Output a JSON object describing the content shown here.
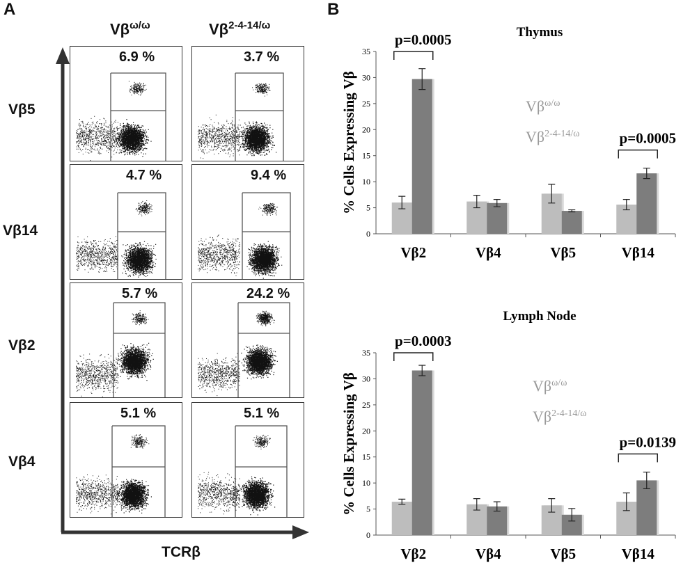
{
  "panel_a": {
    "letter": "A",
    "col_titles": [
      {
        "base": "Vβ",
        "sup": "ω/ω"
      },
      {
        "base": "Vβ",
        "sup": "2-4-14/ω"
      }
    ],
    "rows": [
      {
        "label": "Vβ5",
        "values": [
          "6.9 %",
          "3.7 %"
        ]
      },
      {
        "label": "Vβ14",
        "values": [
          "4.7 %",
          "9.4 %"
        ]
      },
      {
        "label": "Vβ2",
        "values": [
          "5.7 %",
          "24.2 %"
        ]
      },
      {
        "label": "Vβ4",
        "values": [
          "5.1 %",
          "5.1 %"
        ]
      }
    ],
    "x_axis_title": "TCRβ"
  },
  "panel_b": {
    "letter": "B"
  },
  "colors": {
    "light": "#bdbdbd",
    "dark": "#7d7d7d",
    "legend_text": "#9a9a9a"
  },
  "chart_data": [
    {
      "type": "bar",
      "title": "Thymus",
      "ylabel": "% Cells Expressing Vβ",
      "ylim": [
        0,
        35
      ],
      "yticks": [
        0,
        5,
        10,
        15,
        20,
        25,
        30,
        35
      ],
      "categories": [
        "Vβ2",
        "Vβ4",
        "Vβ5",
        "Vβ14"
      ],
      "series": [
        {
          "name": "Vβω/ω",
          "name_base": "Vβ",
          "name_sup": "ω/ω",
          "values": [
            6.0,
            6.2,
            7.7,
            5.6
          ],
          "errors": [
            1.2,
            1.2,
            1.8,
            1.0
          ]
        },
        {
          "name": "Vβ2-4-14/ω",
          "name_base": "Vβ",
          "name_sup": "2-4-14/ω",
          "values": [
            29.7,
            5.9,
            4.4,
            11.6
          ],
          "errors": [
            2.0,
            0.7,
            0.2,
            1.0
          ]
        }
      ],
      "annotations": [
        {
          "text": "p=0.0005",
          "category": "Vβ2"
        },
        {
          "text": "p=0.0005",
          "category": "Vβ14"
        }
      ],
      "legend": "top-right"
    },
    {
      "type": "bar",
      "title": "Lymph Node",
      "ylabel": "% Cells Expressing Vβ",
      "ylim": [
        0,
        35
      ],
      "yticks": [
        0,
        5,
        10,
        15,
        20,
        25,
        30,
        35
      ],
      "categories": [
        "Vβ2",
        "Vβ4",
        "Vβ5",
        "Vβ14"
      ],
      "series": [
        {
          "name": "Vβω/ω",
          "name_base": "Vβ",
          "name_sup": "ω/ω",
          "values": [
            6.4,
            5.9,
            5.7,
            6.4
          ],
          "errors": [
            0.5,
            1.1,
            1.3,
            1.7
          ]
        },
        {
          "name": "Vβ2-4-14/ω",
          "name_base": "Vβ",
          "name_sup": "2-4-14/ω",
          "values": [
            31.6,
            5.5,
            3.9,
            10.5
          ],
          "errors": [
            1.0,
            0.9,
            1.2,
            1.6
          ]
        }
      ],
      "annotations": [
        {
          "text": "p=0.0003",
          "category": "Vβ2"
        },
        {
          "text": "p=0.0139",
          "category": "Vβ14"
        }
      ],
      "legend": "top-right"
    }
  ]
}
